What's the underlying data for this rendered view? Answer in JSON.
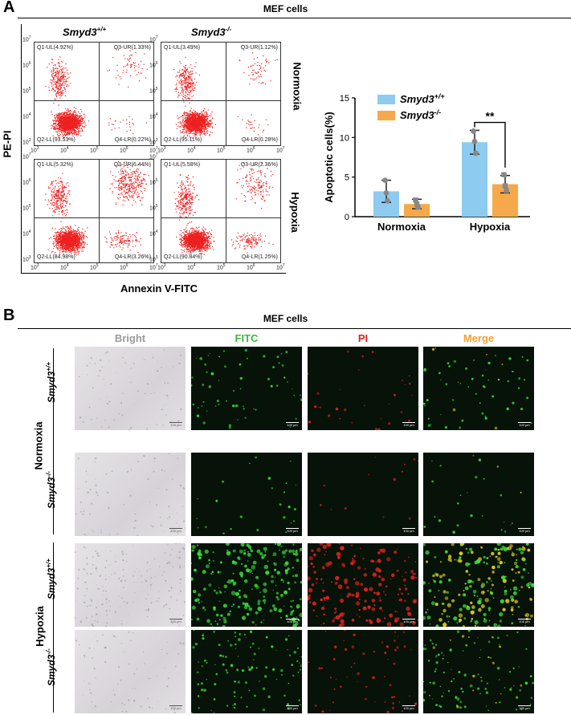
{
  "panelA": {
    "letter": "A",
    "title": "MEF cells",
    "geno_wt": "Smyd3",
    "geno_wt_sup": "+/+",
    "geno_ko": "Smyd3",
    "geno_ko_sup": "-/-",
    "y_axis_label": "PE-PI",
    "x_axis_label": "Annexin V-FITC",
    "row_normoxia": "Normoxia",
    "row_hypoxia": "Hypoxia",
    "x_ticks": [
      "10",
      "10",
      "10",
      "10",
      "10"
    ],
    "x_tick_exps": [
      "3",
      "4",
      "5",
      "6",
      "7"
    ],
    "plots": [
      {
        "q1": "Q1-UL(4.92%)",
        "q3": "Q3-UR(1.33%)",
        "q2": "Q2-LL(93.53%)",
        "q4": "Q4-LR(0.22%)"
      },
      {
        "q1": "Q1-UL(3.49%)",
        "q3": "Q3-UR(1.12%)",
        "q2": "Q2-LL(95.11%)",
        "q4": "Q4-LR(0.28%)"
      },
      {
        "q1": "Q1-UL(5.32%)",
        "q3": "Q3-UR(6.44%)",
        "q2": "Q2-LL(84.98%)",
        "q4": "Q4-LR(3.26%)"
      },
      {
        "q1": "Q1-UL(5.58%)",
        "q3": "Q3-UR(2.36%)",
        "q2": "Q2-LL(90.84%)",
        "q4": "Q4-LR(1.25%)"
      }
    ]
  },
  "chart_data": {
    "type": "bar",
    "categories": [
      "Normoxia",
      "Hypoxia"
    ],
    "ylabel": "Apoptotic cells(%)",
    "ylim": [
      0,
      15
    ],
    "yticks": [
      0,
      5,
      10,
      15
    ],
    "series": [
      {
        "name": "Smyd3+/+",
        "legend_main": "Smyd3",
        "legend_sup": "+/+",
        "color": "#8ecbf0",
        "values": [
          3.2,
          9.4
        ],
        "err": [
          1.4,
          1.5
        ],
        "points": [
          [
            4.6,
            3.0,
            2.0
          ],
          [
            10.8,
            9.5,
            8.0
          ]
        ]
      },
      {
        "name": "Smyd3-/-",
        "legend_main": "Smyd3",
        "legend_sup": "-/-",
        "color": "#f5a94a",
        "values": [
          1.6,
          4.1
        ],
        "err": [
          0.6,
          1.1
        ],
        "points": [
          [
            2.1,
            1.6,
            1.2
          ],
          [
            5.3,
            3.9,
            3.3
          ]
        ]
      }
    ],
    "significance": "**"
  },
  "panelB": {
    "letter": "B",
    "title": "MEF cells",
    "columns": [
      "Bright",
      "FITC",
      "PI",
      "Merge"
    ],
    "column_colors": [
      "#9a9a9a",
      "#3cb93c",
      "#e02020",
      "#f5a030"
    ],
    "group_normoxia": "Normoxia",
    "group_hypoxia": "Hypoxia",
    "row_geno": "Smyd3",
    "row_sups": [
      "+/+",
      "-/-",
      "+/+",
      "-/-"
    ],
    "scale": "100 µm"
  }
}
